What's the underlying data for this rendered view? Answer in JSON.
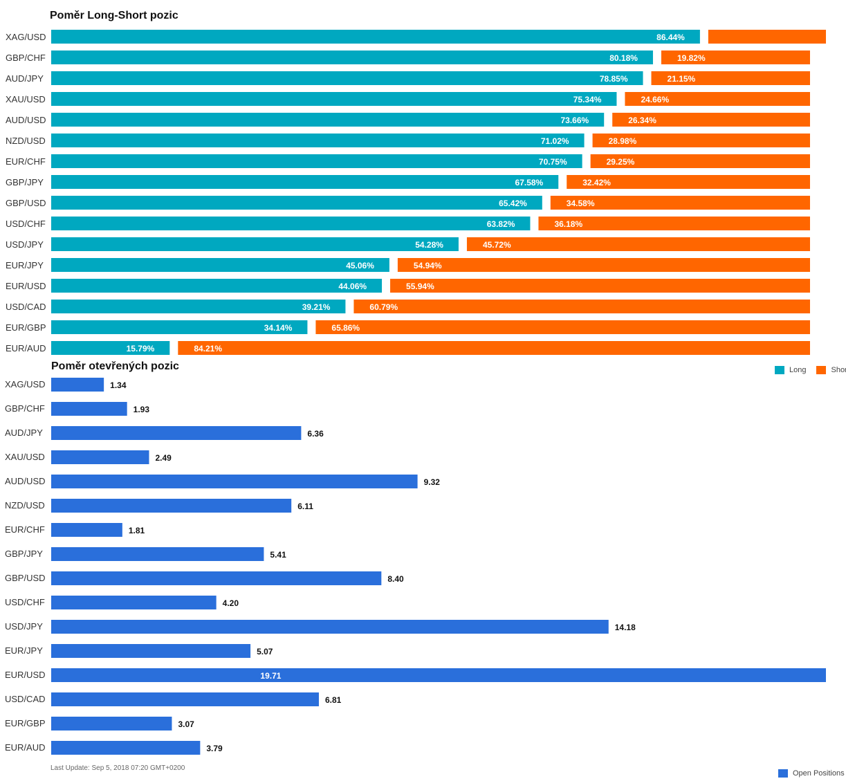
{
  "chart_data": [
    {
      "type": "bar",
      "orientation": "horizontal",
      "stacked": true,
      "title": "Poměr Long-Short pozic",
      "categories": [
        "XAG/USD",
        "GBP/CHF",
        "AUD/JPY",
        "XAU/USD",
        "AUD/USD",
        "NZD/USD",
        "EUR/CHF",
        "GBP/JPY",
        "GBP/USD",
        "USD/CHF",
        "USD/JPY",
        "EUR/JPY",
        "EUR/USD",
        "USD/CAD",
        "EUR/GBP",
        "EUR/AUD"
      ],
      "series": [
        {
          "name": "Long",
          "color": "#00a8c0",
          "values": [
            86.44,
            80.18,
            78.85,
            75.34,
            73.66,
            71.02,
            70.75,
            67.58,
            65.42,
            63.82,
            54.28,
            45.06,
            44.06,
            39.21,
            34.14,
            15.79
          ]
        },
        {
          "name": "Short",
          "color": "#ff6600",
          "values": [
            13.56,
            19.82,
            21.15,
            24.66,
            26.34,
            28.98,
            29.25,
            32.42,
            34.58,
            36.18,
            45.72,
            54.94,
            55.94,
            60.79,
            65.86,
            84.21
          ]
        }
      ],
      "labels": {
        "long": [
          "86.44%",
          "80.18%",
          "78.85%",
          "75.34%",
          "73.66%",
          "71.02%",
          "70.75%",
          "67.58%",
          "65.42%",
          "63.82%",
          "54.28%",
          "45.06%",
          "44.06%",
          "39.21%",
          "34.14%",
          "15.79%"
        ],
        "short": [
          "",
          "19.82%",
          "21.15%",
          "24.66%",
          "26.34%",
          "28.98%",
          "29.25%",
          "32.42%",
          "34.58%",
          "36.18%",
          "45.72%",
          "54.94%",
          "55.94%",
          "60.79%",
          "65.86%",
          "84.21%"
        ]
      },
      "legend": "bottom-right",
      "grid": false
    },
    {
      "type": "bar",
      "orientation": "horizontal",
      "title": "Poměr otevřených pozic",
      "categories": [
        "XAG/USD",
        "GBP/CHF",
        "AUD/JPY",
        "XAU/USD",
        "AUD/USD",
        "NZD/USD",
        "EUR/CHF",
        "GBP/JPY",
        "GBP/USD",
        "USD/CHF",
        "USD/JPY",
        "EUR/JPY",
        "EUR/USD",
        "USD/CAD",
        "EUR/GBP",
        "EUR/AUD"
      ],
      "series": [
        {
          "name": "Open Positions",
          "color": "#2a6fdb",
          "values": [
            1.34,
            1.93,
            6.36,
            2.49,
            9.32,
            6.11,
            1.81,
            5.41,
            8.4,
            4.2,
            14.18,
            5.07,
            19.71,
            6.81,
            3.07,
            3.79
          ]
        }
      ],
      "labels": [
        "1.34",
        "1.93",
        "6.36",
        "2.49",
        "9.32",
        "6.11",
        "1.81",
        "5.41",
        "8.40",
        "4.20",
        "14.18",
        "5.07",
        "19.71",
        "6.81",
        "3.07",
        "3.79"
      ],
      "xlim": [
        0,
        19.71
      ],
      "legend": "bottom-right",
      "grid": false
    }
  ],
  "footer": {
    "last_update": "Last Update: Sep 5, 2018 07:20 GMT+0200"
  },
  "colors": {
    "long": "#00a8c0",
    "short": "#ff6600",
    "open": "#2a6fdb",
    "label_light": "#ffffff",
    "label_dark": "#111111",
    "category_text": "#333333"
  }
}
